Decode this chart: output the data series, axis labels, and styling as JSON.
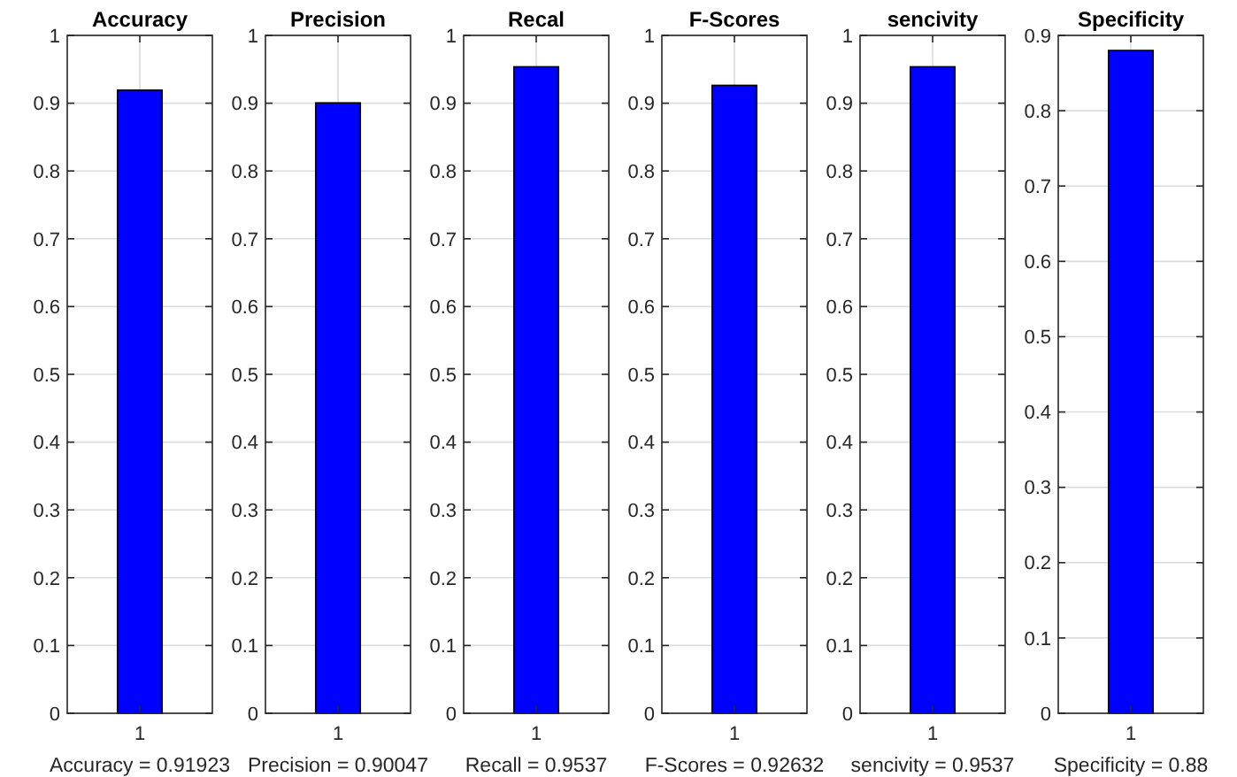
{
  "chart_data": [
    {
      "type": "bar",
      "title": "Accuracy",
      "xlabel": "Accuracy = 0.91923",
      "categories": [
        "1"
      ],
      "values": [
        0.91923
      ],
      "color": "#0000ff",
      "ylim": [
        0,
        1
      ],
      "yticks": [
        0,
        0.1,
        0.2,
        0.3,
        0.4,
        0.5,
        0.6,
        0.7,
        0.8,
        0.9,
        1
      ],
      "grid": true
    },
    {
      "type": "bar",
      "title": "Precision",
      "xlabel": "Precision = 0.90047",
      "categories": [
        "1"
      ],
      "values": [
        0.90047
      ],
      "color": "#0000ff",
      "ylim": [
        0,
        1
      ],
      "yticks": [
        0,
        0.1,
        0.2,
        0.3,
        0.4,
        0.5,
        0.6,
        0.7,
        0.8,
        0.9,
        1
      ],
      "grid": true
    },
    {
      "type": "bar",
      "title": "Recal",
      "xlabel": "Recall = 0.9537",
      "categories": [
        "1"
      ],
      "values": [
        0.9537
      ],
      "color": "#0000ff",
      "ylim": [
        0,
        1
      ],
      "yticks": [
        0,
        0.1,
        0.2,
        0.3,
        0.4,
        0.5,
        0.6,
        0.7,
        0.8,
        0.9,
        1
      ],
      "grid": true
    },
    {
      "type": "bar",
      "title": "F-Scores",
      "xlabel": "F-Scores = 0.92632",
      "categories": [
        "1"
      ],
      "values": [
        0.92632
      ],
      "color": "#0000ff",
      "ylim": [
        0,
        1
      ],
      "yticks": [
        0,
        0.1,
        0.2,
        0.3,
        0.4,
        0.5,
        0.6,
        0.7,
        0.8,
        0.9,
        1
      ],
      "grid": true
    },
    {
      "type": "bar",
      "title": "sencivity",
      "xlabel": "sencivity = 0.9537",
      "categories": [
        "1"
      ],
      "values": [
        0.9537
      ],
      "color": "#0000ff",
      "ylim": [
        0,
        1
      ],
      "yticks": [
        0,
        0.1,
        0.2,
        0.3,
        0.4,
        0.5,
        0.6,
        0.7,
        0.8,
        0.9,
        1
      ],
      "grid": true
    },
    {
      "type": "bar",
      "title": "Specificity",
      "xlabel": "Specificity = 0.88",
      "categories": [
        "1"
      ],
      "values": [
        0.88
      ],
      "color": "#0000ff",
      "ylim": [
        0,
        0.9
      ],
      "yticks": [
        0,
        0.1,
        0.2,
        0.3,
        0.4,
        0.5,
        0.6,
        0.7,
        0.8,
        0.9
      ],
      "grid": true
    }
  ]
}
